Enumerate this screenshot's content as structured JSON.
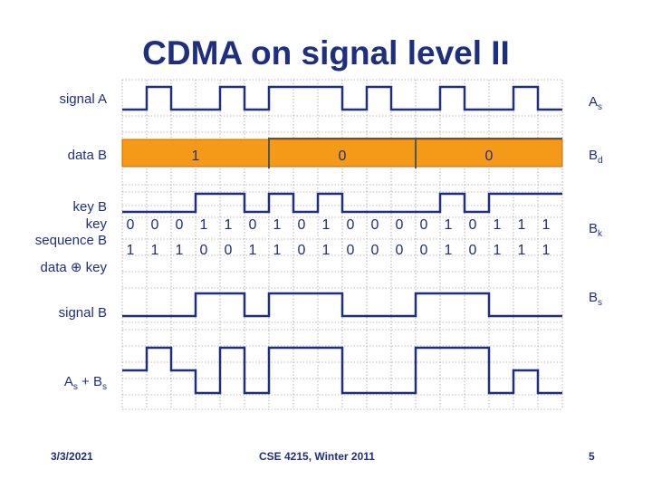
{
  "title": "CDMA on signal level II",
  "labels_left": {
    "signal_a": "signal A",
    "data_b": "data B",
    "key_b": "key B",
    "key_sequence_b_1": "key",
    "key_sequence_b_2": "sequence B",
    "data_xor_key_1": "data",
    "data_xor_key_sym": "⊕",
    "data_xor_key_2": "key",
    "signal_b": "signal B",
    "as_plus_bs_a": "A",
    "as_plus_bs_sub1": "s",
    "as_plus_bs_mid": " + B",
    "as_plus_bs_sub2": "s"
  },
  "labels_right": {
    "as_main": "A",
    "as_sub": "s",
    "bd_main": "B",
    "bd_sub": "d",
    "bk_main": "B",
    "bk_sub": "k",
    "bs_main": "B",
    "bs_sub": "s"
  },
  "data_b": [
    "1",
    "0",
    "0"
  ],
  "key_sequence": [
    "0",
    "0",
    "0",
    "1",
    "1",
    "0",
    "1",
    "0",
    "1",
    "0",
    "0",
    "0",
    "0",
    "1",
    "0",
    "1",
    "1",
    "1"
  ],
  "data_xor_key": [
    "1",
    "1",
    "1",
    "0",
    "0",
    "1",
    "1",
    "0",
    "1",
    "0",
    "0",
    "0",
    "0",
    "1",
    "0",
    "1",
    "1",
    "1"
  ],
  "signals": {
    "signal_a": [
      "0",
      "1",
      "0",
      "0",
      "1",
      "0",
      "1",
      "1",
      "1",
      "0",
      "1",
      "0",
      "0",
      "1",
      "0",
      "0",
      "1",
      "0"
    ],
    "key_b": [
      "0",
      "0",
      "0",
      "1",
      "1",
      "0",
      "1",
      "0",
      "1",
      "0",
      "0",
      "0",
      "0",
      "1",
      "0",
      "1",
      "1",
      "1"
    ],
    "signal_b": [
      "0",
      "0",
      "0",
      "1",
      "1",
      "0",
      "1",
      "1",
      "1",
      "0",
      "0",
      "0",
      "1",
      "1",
      "1",
      "0",
      "0",
      "0"
    ],
    "as_plus_bs": [
      "0",
      "1",
      "0",
      "-1",
      "1",
      "-1",
      "1",
      "1",
      "1",
      "-1",
      "-1",
      "-1",
      "1",
      "1",
      "1",
      "-1",
      "0",
      "-1"
    ]
  },
  "colors": {
    "band": "#f59a18",
    "band_edge": "#c96a00",
    "line": "#1f2f80",
    "grid": "#7f7f7f"
  },
  "footer": {
    "date": "3/3/2021",
    "course": "CSE 4215, Winter 2011",
    "page": "5"
  }
}
